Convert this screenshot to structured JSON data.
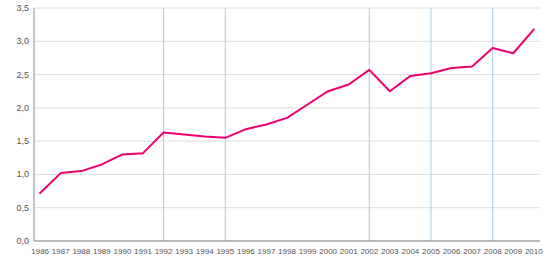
{
  "chart_data": {
    "type": "line",
    "x": [
      1986,
      1987,
      1988,
      1989,
      1990,
      1991,
      1992,
      1993,
      1994,
      1995,
      1996,
      1997,
      1998,
      1999,
      2000,
      2001,
      2002,
      2003,
      2004,
      2005,
      2006,
      2007,
      2008,
      2009,
      2010
    ],
    "values": [
      0.72,
      1.02,
      1.05,
      1.15,
      1.3,
      1.32,
      1.63,
      1.6,
      1.57,
      1.55,
      1.68,
      1.75,
      1.85,
      2.05,
      2.25,
      2.35,
      2.57,
      2.25,
      2.48,
      2.52,
      2.6,
      2.62,
      2.9,
      2.82,
      3.18
    ],
    "color": "#f0006e",
    "xlim": [
      1985.7,
      2010.3
    ],
    "xticks": [
      1986,
      1987,
      1988,
      1989,
      1990,
      1991,
      1992,
      1993,
      1994,
      1995,
      1996,
      1997,
      1998,
      1999,
      2000,
      2001,
      2002,
      2003,
      2004,
      2005,
      2006,
      2007,
      2008,
      2009,
      2010
    ],
    "ylim": [
      0.0,
      3.5
    ],
    "yticks": [
      {
        "value": 0.0,
        "label": "0,0"
      },
      {
        "value": 0.5,
        "label": "0,5"
      },
      {
        "value": 1.0,
        "label": "1,0"
      },
      {
        "value": 1.5,
        "label": "1,5"
      },
      {
        "value": 2.0,
        "label": "2,0"
      },
      {
        "value": 2.5,
        "label": "2,5"
      },
      {
        "value": 3.0,
        "label": "3,0"
      },
      {
        "value": 3.5,
        "label": "3,5"
      }
    ],
    "vlines": {
      "values": [
        1992,
        1995,
        2002,
        2005,
        2008
      ],
      "color": "#aaccdd"
    },
    "grid": true
  }
}
